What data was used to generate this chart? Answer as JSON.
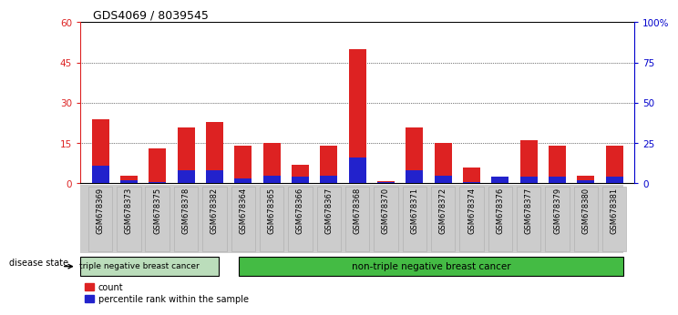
{
  "title": "GDS4069 / 8039545",
  "samples": [
    "GSM678369",
    "GSM678373",
    "GSM678375",
    "GSM678378",
    "GSM678382",
    "GSM678364",
    "GSM678365",
    "GSM678366",
    "GSM678367",
    "GSM678368",
    "GSM678370",
    "GSM678371",
    "GSM678372",
    "GSM678374",
    "GSM678376",
    "GSM678377",
    "GSM678379",
    "GSM678380",
    "GSM678381"
  ],
  "count": [
    24,
    3,
    13,
    21,
    23,
    14,
    15,
    7,
    14,
    50,
    1,
    21,
    15,
    6,
    1,
    16,
    14,
    3,
    14
  ],
  "percentile": [
    11,
    2,
    1,
    8,
    8,
    3,
    5,
    4,
    5,
    16,
    1,
    8,
    5,
    1,
    4,
    4,
    4,
    2,
    4
  ],
  "group1_label": "triple negative breast cancer",
  "group2_label": "non-triple negative breast cancer",
  "group1_count": 5,
  "group2_count": 14,
  "legend_count": "count",
  "legend_percentile": "percentile rank within the sample",
  "ylim_left": [
    0,
    60
  ],
  "ylim_right": [
    0,
    100
  ],
  "yticks_left": [
    0,
    15,
    30,
    45,
    60
  ],
  "yticks_right": [
    0,
    25,
    50,
    75,
    100
  ],
  "ytick_labels_right": [
    "0",
    "25",
    "50",
    "75",
    "100%"
  ],
  "bar_color_count": "#dd2222",
  "bar_color_percentile": "#2222cc",
  "group1_color": "#bbddbb",
  "group2_color": "#44bb44",
  "disease_state_label": "disease state"
}
